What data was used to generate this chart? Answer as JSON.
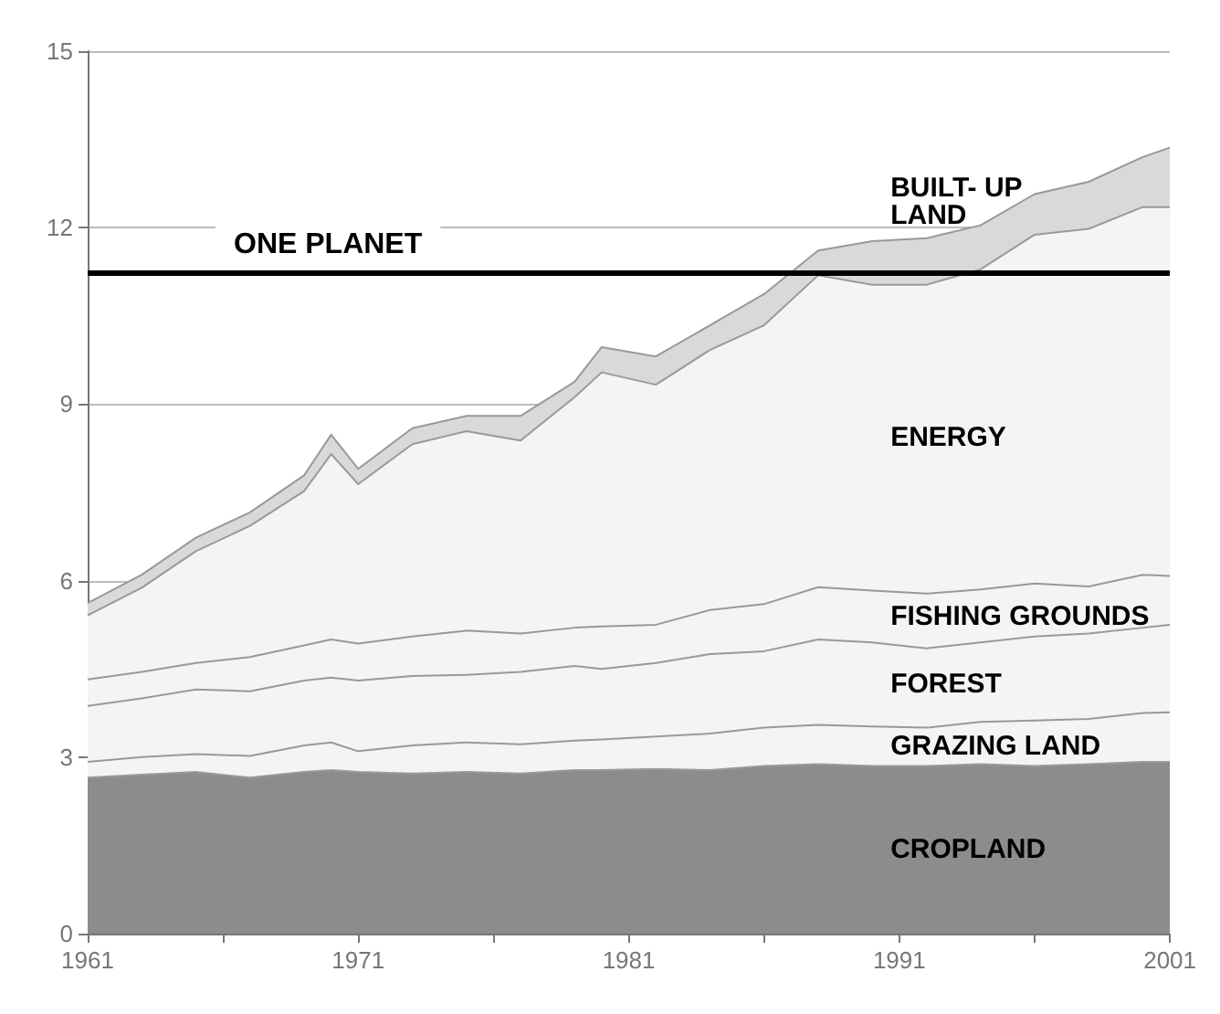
{
  "chart_data": {
    "type": "area",
    "stacked": true,
    "x": [
      1961,
      1963,
      1965,
      1967,
      1969,
      1970,
      1971,
      1973,
      1975,
      1977,
      1979,
      1980,
      1982,
      1984,
      1986,
      1988,
      1990,
      1992,
      1994,
      1996,
      1998,
      2000,
      2001
    ],
    "series": [
      {
        "name": "CROPLAND",
        "color": "#8c8c8c",
        "values": [
          2.65,
          2.7,
          2.75,
          2.65,
          2.75,
          2.78,
          2.75,
          2.72,
          2.75,
          2.72,
          2.78,
          2.78,
          2.8,
          2.78,
          2.85,
          2.88,
          2.85,
          2.85,
          2.88,
          2.85,
          2.88,
          2.92,
          2.92
        ]
      },
      {
        "name": "GRAZING LAND",
        "color": "#f4f4f4",
        "values": [
          0.27,
          0.3,
          0.3,
          0.37,
          0.45,
          0.47,
          0.35,
          0.48,
          0.5,
          0.5,
          0.5,
          0.52,
          0.55,
          0.62,
          0.65,
          0.67,
          0.67,
          0.65,
          0.72,
          0.77,
          0.77,
          0.83,
          0.84
        ]
      },
      {
        "name": "FOREST",
        "color": "#f4f4f4",
        "values": [
          0.95,
          1.0,
          1.1,
          1.1,
          1.1,
          1.1,
          1.2,
          1.18,
          1.15,
          1.23,
          1.27,
          1.2,
          1.25,
          1.35,
          1.3,
          1.45,
          1.43,
          1.35,
          1.35,
          1.43,
          1.45,
          1.45,
          1.49
        ]
      },
      {
        "name": "FISHING GROUNDS",
        "color": "#f4f4f4",
        "values": [
          0.45,
          0.45,
          0.45,
          0.58,
          0.6,
          0.65,
          0.63,
          0.67,
          0.75,
          0.65,
          0.65,
          0.72,
          0.65,
          0.75,
          0.8,
          0.89,
          0.88,
          0.93,
          0.9,
          0.9,
          0.8,
          0.9,
          0.83
        ]
      },
      {
        "name": "ENERGY",
        "color": "#f4f4f4",
        "values": [
          1.09,
          1.43,
          1.9,
          2.23,
          2.62,
          3.15,
          2.71,
          3.27,
          3.39,
          3.28,
          3.92,
          4.32,
          4.08,
          4.42,
          4.74,
          5.3,
          5.2,
          5.25,
          5.44,
          5.93,
          6.08,
          6.25,
          6.27
        ]
      },
      {
        "name": "BUILT- UP LAND",
        "color": "#d9d9d9",
        "values": [
          0.21,
          0.22,
          0.23,
          0.23,
          0.27,
          0.33,
          0.26,
          0.27,
          0.26,
          0.42,
          0.26,
          0.43,
          0.48,
          0.42,
          0.53,
          0.42,
          0.74,
          0.79,
          0.75,
          0.69,
          0.8,
          0.85,
          1.01
        ]
      }
    ],
    "xlim": [
      1961,
      2001
    ],
    "xticks": [
      1961,
      {
        "value": 1966,
        "label": null
      },
      1971,
      {
        "value": 1976,
        "label": null
      },
      1981,
      {
        "value": 1986,
        "label": null
      },
      1991,
      {
        "value": 1996,
        "label": null
      },
      2001
    ],
    "ylim": [
      0,
      15
    ],
    "yticks": [
      0,
      3,
      6,
      9,
      12,
      15
    ],
    "ref_lines": [
      {
        "axis": "y",
        "value": 11.25,
        "label": "ONE PLANET",
        "color": "#000000"
      }
    ],
    "grid": "y",
    "legend": false
  }
}
